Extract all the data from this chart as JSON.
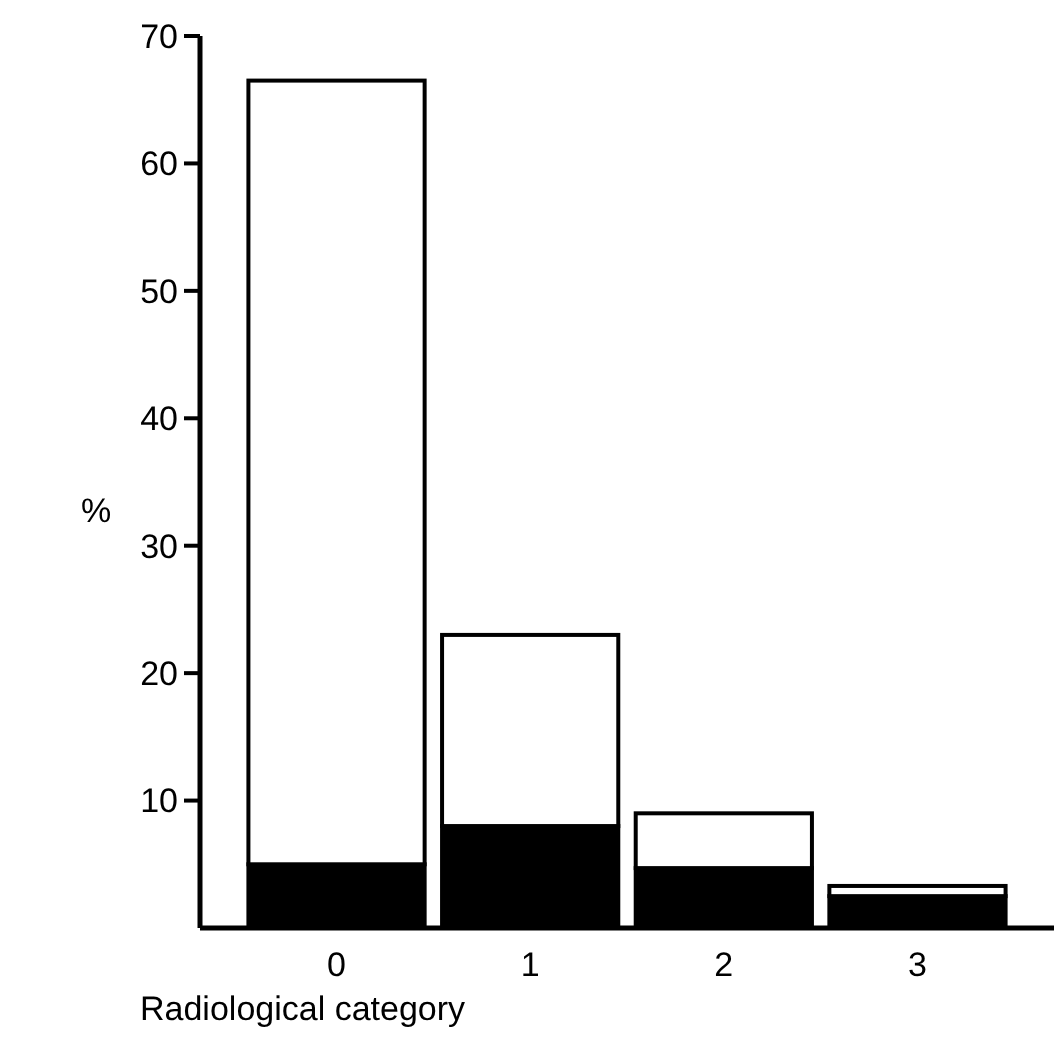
{
  "chart_data": {
    "type": "bar",
    "stacked": true,
    "xlabel": "Radiological category",
    "ylabel": "%",
    "categories": [
      "0",
      "1",
      "2",
      "3"
    ],
    "series": [
      {
        "color": "#000000",
        "values": [
          5,
          8,
          4.7,
          2.5
        ]
      },
      {
        "color": "#ffffff",
        "values": [
          61.5,
          15,
          4.3,
          0.8
        ]
      }
    ],
    "ylim": [
      0,
      70
    ],
    "yticks": [
      10,
      20,
      30,
      40,
      50,
      60,
      70
    ],
    "grid": false
  }
}
